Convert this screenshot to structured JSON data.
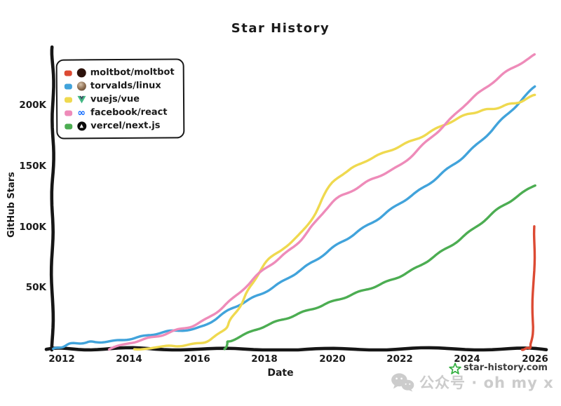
{
  "title": "Star History",
  "watermark": {
    "site": "star-history.com",
    "wechat_text": "公众号 · oh my x"
  },
  "chart_data": {
    "type": "line",
    "title": "Star History",
    "xlabel": "Date",
    "ylabel": "GitHub Stars",
    "grid": false,
    "legend_position": "top-left",
    "x_tick_labels": [
      "2012",
      "2014",
      "2016",
      "2018",
      "2020",
      "2022",
      "2024",
      "2026"
    ],
    "y_tick_labels": [
      "50K",
      "100K",
      "150K",
      "200K"
    ],
    "x_range": [
      2011.7,
      2026.3
    ],
    "y_range_stars": [
      0,
      245000
    ],
    "units": "points are [year, stars_in_thousands]",
    "series": [
      {
        "name": "moltbot/moltbot",
        "color": "#dc4a33",
        "icon": "moltbot-avatar",
        "points": [
          [
            2025.62,
            0
          ],
          [
            2025.78,
            0.6
          ],
          [
            2025.86,
            2
          ],
          [
            2025.91,
            8
          ],
          [
            2025.94,
            30
          ],
          [
            2025.97,
            70
          ],
          [
            2026,
            101
          ]
        ]
      },
      {
        "name": "torvalds/linux",
        "color": "#41a3db",
        "icon": "torvalds-avatar",
        "points": [
          [
            2011.75,
            0
          ],
          [
            2012,
            2
          ],
          [
            2012.3,
            4.5
          ],
          [
            2012.7,
            5.5
          ],
          [
            2013,
            6
          ],
          [
            2013.5,
            6.5
          ],
          [
            2014,
            8.5
          ],
          [
            2014.5,
            11
          ],
          [
            2015,
            14
          ],
          [
            2015.5,
            15.5
          ],
          [
            2016,
            17
          ],
          [
            2016.5,
            24
          ],
          [
            2017,
            33
          ],
          [
            2017.5,
            40
          ],
          [
            2018,
            47
          ],
          [
            2018.5,
            55
          ],
          [
            2019,
            64
          ],
          [
            2019.5,
            73
          ],
          [
            2020,
            83
          ],
          [
            2020.5,
            92
          ],
          [
            2021,
            101
          ],
          [
            2021.5,
            110
          ],
          [
            2022,
            120
          ],
          [
            2022.5,
            129
          ],
          [
            2023,
            139
          ],
          [
            2023.5,
            150
          ],
          [
            2024,
            161
          ],
          [
            2024.5,
            174
          ],
          [
            2025,
            188
          ],
          [
            2025.5,
            202
          ],
          [
            2026,
            216
          ]
        ]
      },
      {
        "name": "vuejs/vue",
        "color": "#efd94f",
        "icon": "vue-logo",
        "points": [
          [
            2014.15,
            0
          ],
          [
            2015,
            2
          ],
          [
            2015.5,
            3
          ],
          [
            2016,
            4.5
          ],
          [
            2016.4,
            8
          ],
          [
            2016.8,
            16
          ],
          [
            2017,
            24
          ],
          [
            2017.3,
            37
          ],
          [
            2017.6,
            52
          ],
          [
            2018,
            70
          ],
          [
            2018.5,
            82
          ],
          [
            2019,
            93
          ],
          [
            2019.5,
            112
          ],
          [
            2020,
            137
          ],
          [
            2020.5,
            147
          ],
          [
            2021,
            155
          ],
          [
            2021.5,
            161
          ],
          [
            2022,
            167
          ],
          [
            2022.5,
            173
          ],
          [
            2023,
            180
          ],
          [
            2023.5,
            187
          ],
          [
            2024,
            193
          ],
          [
            2024.4,
            196
          ],
          [
            2024.8,
            198
          ],
          [
            2025.2,
            201
          ],
          [
            2025.6,
            204
          ],
          [
            2026,
            209
          ]
        ]
      },
      {
        "name": "facebook/react",
        "color": "#ee8bb9",
        "icon": "meta-logo",
        "points": [
          [
            2013.4,
            0
          ],
          [
            2014,
            5
          ],
          [
            2014.5,
            8.5
          ],
          [
            2015,
            12
          ],
          [
            2015.5,
            16.5
          ],
          [
            2016,
            20.5
          ],
          [
            2016.5,
            29
          ],
          [
            2017,
            40
          ],
          [
            2017.5,
            53
          ],
          [
            2018,
            66
          ],
          [
            2018.5,
            76
          ],
          [
            2019,
            88
          ],
          [
            2019.5,
            104
          ],
          [
            2020,
            121
          ],
          [
            2020.5,
            129
          ],
          [
            2021,
            137
          ],
          [
            2021.5,
            144
          ],
          [
            2022,
            151
          ],
          [
            2022.5,
            163
          ],
          [
            2023,
            176
          ],
          [
            2023.5,
            189
          ],
          [
            2024,
            203
          ],
          [
            2024.5,
            214
          ],
          [
            2025,
            225
          ],
          [
            2025.5,
            234
          ],
          [
            2026,
            242
          ]
        ]
      },
      {
        "name": "vercel/next.js",
        "color": "#4cad52",
        "icon": "nextjs-logo",
        "points": [
          [
            2016.83,
            0
          ],
          [
            2016.9,
            5
          ],
          [
            2017,
            7
          ],
          [
            2017.5,
            13
          ],
          [
            2018,
            19
          ],
          [
            2018.5,
            24
          ],
          [
            2019,
            29
          ],
          [
            2019.5,
            34
          ],
          [
            2020,
            39
          ],
          [
            2020.5,
            44
          ],
          [
            2021,
            49
          ],
          [
            2021.5,
            54
          ],
          [
            2022,
            60
          ],
          [
            2022.5,
            67
          ],
          [
            2023,
            76
          ],
          [
            2023.5,
            85
          ],
          [
            2024,
            95
          ],
          [
            2024.5,
            106
          ],
          [
            2025,
            117
          ],
          [
            2025.5,
            126
          ],
          [
            2026,
            135
          ]
        ]
      }
    ]
  }
}
